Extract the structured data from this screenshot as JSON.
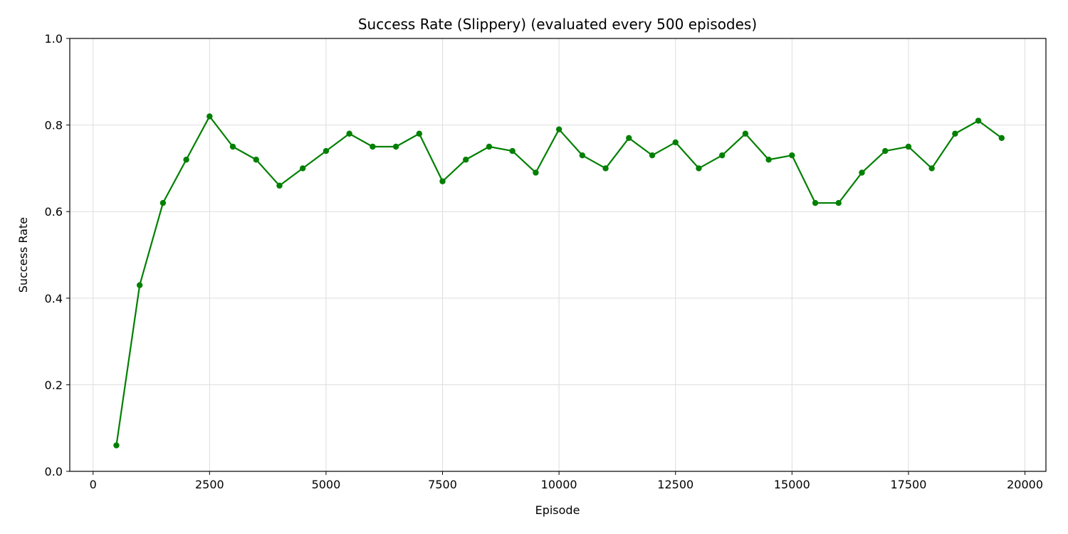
{
  "chart_data": {
    "type": "line",
    "title": "Success Rate (Slippery) (evaluated every 500 episodes)",
    "xlabel": "Episode",
    "ylabel": "Success Rate",
    "xlim": [
      -500,
      20450
    ],
    "ylim": [
      0,
      1
    ],
    "x_ticks": [
      0,
      2500,
      5000,
      7500,
      10000,
      12500,
      15000,
      17500,
      20000
    ],
    "y_ticks": [
      0.0,
      0.2,
      0.4,
      0.6,
      0.8,
      1.0
    ],
    "x_tick_labels": [
      "0",
      "2500",
      "5000",
      "7500",
      "10000",
      "12500",
      "15000",
      "17500",
      "20000"
    ],
    "y_tick_labels": [
      "0.0",
      "0.2",
      "0.4",
      "0.6",
      "0.8",
      "1.0"
    ],
    "grid": true,
    "series": [
      {
        "color": "#008000",
        "marker": "circle",
        "x": [
          500,
          1000,
          1500,
          2000,
          2500,
          3000,
          3500,
          4000,
          4500,
          5000,
          5500,
          6000,
          6500,
          7000,
          7500,
          8000,
          8500,
          9000,
          9500,
          10000,
          10500,
          11000,
          11500,
          12000,
          12500,
          13000,
          13500,
          14000,
          14500,
          15000,
          15500,
          16000,
          16500,
          17000,
          17500,
          18000,
          18500,
          19000,
          19500
        ],
        "values": [
          0.06,
          0.43,
          0.62,
          0.72,
          0.82,
          0.75,
          0.72,
          0.66,
          0.7,
          0.74,
          0.78,
          0.75,
          0.75,
          0.78,
          0.67,
          0.72,
          0.75,
          0.74,
          0.69,
          0.79,
          0.73,
          0.7,
          0.77,
          0.73,
          0.76,
          0.7,
          0.73,
          0.78,
          0.72,
          0.73,
          0.62,
          0.62,
          0.69,
          0.74,
          0.75,
          0.7,
          0.78,
          0.81,
          0.77
        ]
      }
    ]
  }
}
